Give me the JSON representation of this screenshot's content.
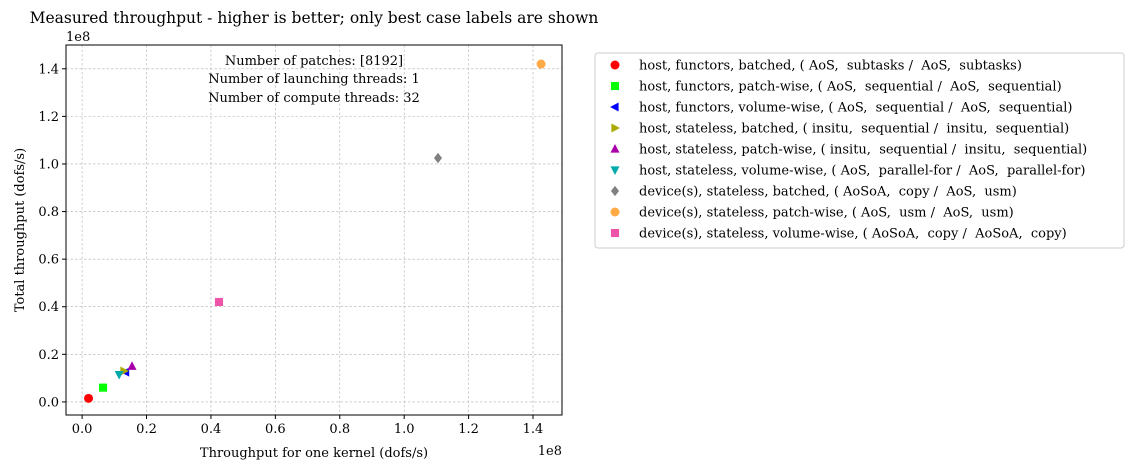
{
  "chart_data": {
    "type": "scatter",
    "title": "Measured throughput - higher is better; only best case labels are shown",
    "xlabel": "Throughput for one kernel (dofs/s)",
    "ylabel": "Total throughput (dofs/s)",
    "x_multiplier": "1e8",
    "y_multiplier": "1e8",
    "xlim": [
      -0.05,
      1.49
    ],
    "ylim": [
      -0.055,
      1.5
    ],
    "x_ticks": [
      0.0,
      0.2,
      0.4,
      0.6,
      0.8,
      1.0,
      1.2,
      1.4
    ],
    "y_ticks": [
      0.0,
      0.2,
      0.4,
      0.6,
      0.8,
      1.0,
      1.2,
      1.4
    ],
    "x_tick_labels": [
      "0.0",
      "0.2",
      "0.4",
      "0.6",
      "0.8",
      "1.0",
      "1.2",
      "1.4"
    ],
    "y_tick_labels": [
      "0.0",
      "0.2",
      "0.4",
      "0.6",
      "0.8",
      "1.0",
      "1.2",
      "1.4"
    ],
    "grid": true,
    "legend_position": "outside-right",
    "annotation_lines": [
      "Number of patches: [8192]",
      "Number of launching threads: 1",
      "Number of compute threads: 32"
    ],
    "series": [
      {
        "name": "host, functors, batched, ( AoS,  subtasks /  AoS,  subtasks)",
        "marker": "circle",
        "color": "#ff0000",
        "x": 0.02,
        "y": 0.015
      },
      {
        "name": "host, functors, patch-wise, ( AoS,  sequential /  AoS,  sequential)",
        "marker": "square",
        "color": "#00ff00",
        "x": 0.065,
        "y": 0.06
      },
      {
        "name": "host, functors, volume-wise, ( AoS,  sequential /  AoS,  sequential)",
        "marker": "triangle-left",
        "color": "#0000ff",
        "x": 0.135,
        "y": 0.125
      },
      {
        "name": "host, stateless, batched, ( insitu,  sequential /  insitu,  sequential)",
        "marker": "triangle-right",
        "color": "#aaaa00",
        "x": 0.13,
        "y": 0.13
      },
      {
        "name": "host, stateless, patch-wise, ( insitu,  sequential /  insitu,  sequential)",
        "marker": "triangle-up",
        "color": "#aa00aa",
        "x": 0.155,
        "y": 0.15
      },
      {
        "name": "host, stateless, volume-wise, ( AoS,  parallel-for /  AoS,  parallel-for)",
        "marker": "triangle-down",
        "color": "#00aaaa",
        "x": 0.115,
        "y": 0.115
      },
      {
        "name": "device(s), stateless, batched, ( AoSoA,  copy /  AoS,  usm)",
        "marker": "diamond",
        "color": "#808080",
        "x": 1.105,
        "y": 1.025
      },
      {
        "name": "device(s), stateless, patch-wise, ( AoS,  usm /  AoS,  usm)",
        "marker": "circle",
        "color": "#ffaa44",
        "x": 1.425,
        "y": 1.42
      },
      {
        "name": "device(s), stateless, volume-wise, ( AoSoA,  copy /  AoSoA,  copy)",
        "marker": "square",
        "color": "#ee55aa",
        "x": 0.425,
        "y": 0.42
      }
    ]
  }
}
